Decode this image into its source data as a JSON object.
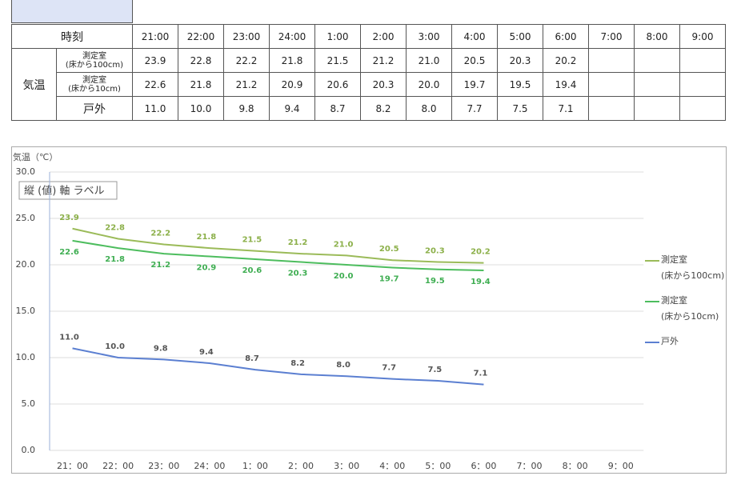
{
  "table": {
    "header": "時刻",
    "times": [
      "21:00",
      "22:00",
      "23:00",
      "24:00",
      "1:00",
      "2:00",
      "3:00",
      "4:00",
      "5:00",
      "6:00",
      "7:00",
      "8:00",
      "9:00"
    ],
    "group": "気温",
    "rows": [
      {
        "label": "測定室\n(床から100cm)",
        "values": [
          "23.9",
          "22.8",
          "22.2",
          "21.8",
          "21.5",
          "21.2",
          "21.0",
          "20.5",
          "20.3",
          "20.2",
          "",
          "",
          ""
        ]
      },
      {
        "label": "測定室\n(床から10cm)",
        "values": [
          "22.6",
          "21.8",
          "21.2",
          "20.9",
          "20.6",
          "20.3",
          "20.0",
          "19.7",
          "19.5",
          "19.4",
          "",
          "",
          ""
        ]
      },
      {
        "label": "戸外",
        "values": [
          "11.0",
          "10.0",
          "9.8",
          "9.4",
          "8.7",
          "8.2",
          "8.0",
          "7.7",
          "7.5",
          "7.1",
          "",
          "",
          ""
        ]
      }
    ]
  },
  "chart_data": {
    "type": "line",
    "y_axis_title": "気温（℃）",
    "annotation": "縦 (値) 軸 ラベル",
    "categories": [
      "21：00",
      "22：00",
      "23：00",
      "24：00",
      "1：00",
      "2：00",
      "3：00",
      "4：00",
      "5：00",
      "6：00",
      "7：00",
      "8：00",
      "9：00"
    ],
    "ylim": [
      0,
      30
    ],
    "yticks": [
      {
        "value": 0,
        "label": "0.0"
      },
      {
        "value": 5,
        "label": "5.0"
      },
      {
        "value": 10,
        "label": "10.0"
      },
      {
        "value": 15,
        "label": "15.0"
      },
      {
        "value": 20,
        "label": "20.0"
      },
      {
        "value": 25,
        "label": "25.0"
      },
      {
        "value": 30,
        "label": "30.0"
      }
    ],
    "grid": true,
    "legend": "right",
    "series": [
      {
        "name": "測定室\n(床から100cm)",
        "color": "#9bbb59",
        "label_color": "#8cb04a",
        "values": [
          23.9,
          22.8,
          22.2,
          21.8,
          21.5,
          21.2,
          21.0,
          20.5,
          20.3,
          20.2,
          null,
          null,
          null
        ],
        "value_labels": [
          "23.9",
          "22.8",
          "22.2",
          "21.8",
          "21.5",
          "21.2",
          "21.0",
          "20.5",
          "20.3",
          "20.2",
          null,
          null,
          null
        ]
      },
      {
        "name": "測定室\n(床から10cm)",
        "color": "#4dbd5e",
        "label_color": "#3fae52",
        "values": [
          22.6,
          21.8,
          21.2,
          20.9,
          20.6,
          20.3,
          20.0,
          19.7,
          19.5,
          19.4,
          null,
          null,
          null
        ],
        "value_labels": [
          "22.6",
          "21.8",
          "21.2",
          "20.9",
          "20.6",
          "20.3",
          "20.0",
          "19.7",
          "19.5",
          "19.4",
          null,
          null,
          null
        ]
      },
      {
        "name": "戸外",
        "color": "#5b7fd1",
        "label_color": "#555555",
        "values": [
          11.0,
          10.0,
          9.8,
          9.4,
          8.7,
          8.2,
          8.0,
          7.7,
          7.5,
          7.1,
          null,
          null,
          null
        ],
        "value_labels": [
          "11.0",
          "10.0",
          "9.8",
          "9.4",
          "8.7",
          "8.2",
          "8.0",
          "7.7",
          "7.5",
          "7.1",
          null,
          null,
          null
        ]
      }
    ]
  }
}
